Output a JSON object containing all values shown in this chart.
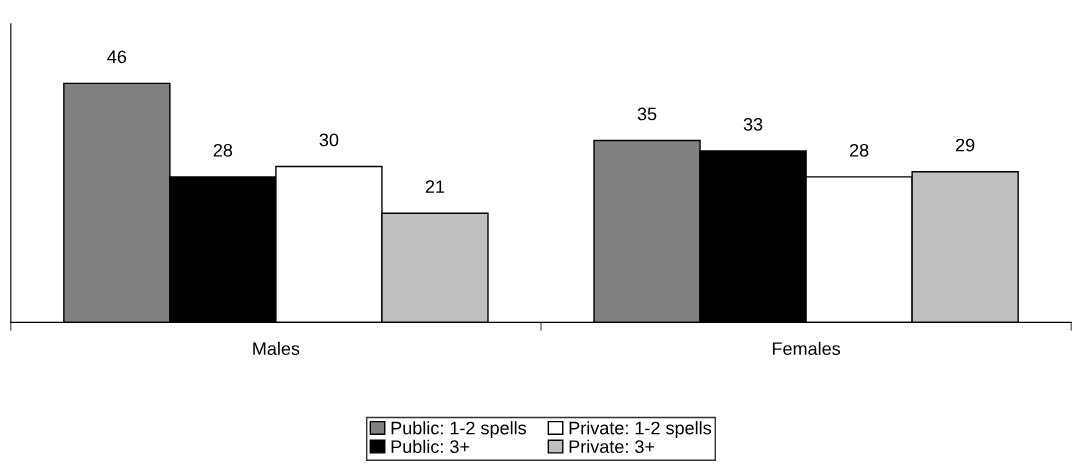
{
  "chart_data": {
    "type": "bar",
    "categories": [
      "Males",
      "Females"
    ],
    "series": [
      {
        "name": "Public: 1-2 spells",
        "color": "#808080",
        "values": [
          46,
          35
        ]
      },
      {
        "name": "Public: 3+",
        "color": "#000000",
        "values": [
          28,
          33
        ]
      },
      {
        "name": "Private: 1-2 spells",
        "color": "#ffffff",
        "values": [
          30,
          28
        ]
      },
      {
        "name": "Private: 3+",
        "color": "#c0c0c0",
        "values": [
          21,
          29
        ]
      }
    ],
    "data_labels": true,
    "grid": false,
    "legend": "bottom"
  }
}
